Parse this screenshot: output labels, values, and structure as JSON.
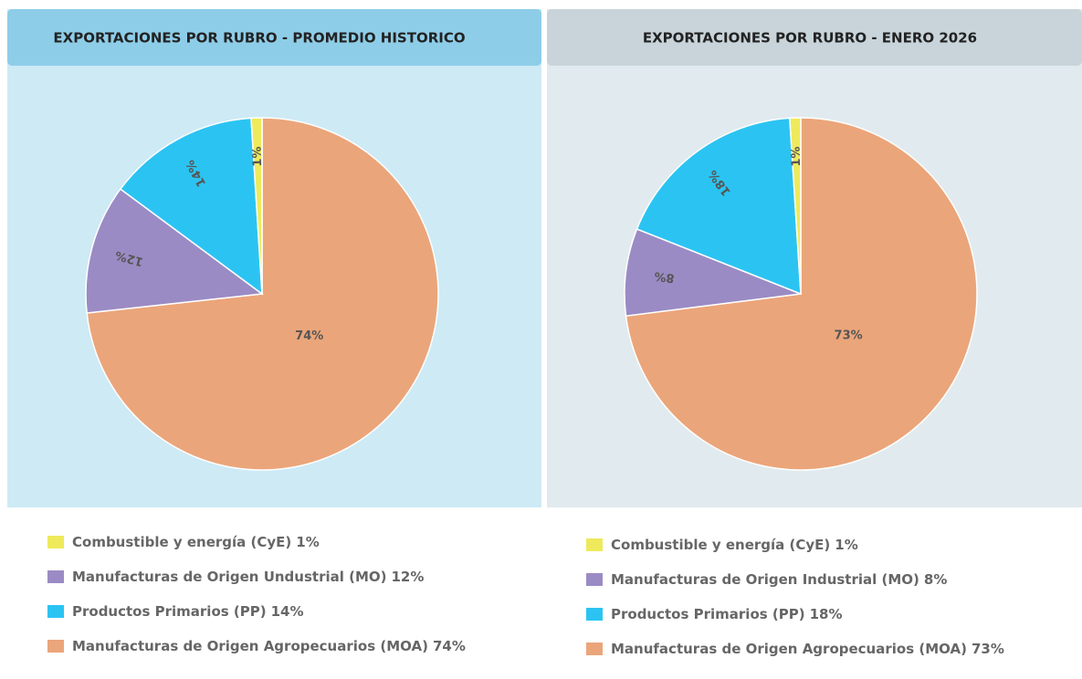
{
  "chart_data": [
    {
      "type": "pie",
      "title": "EXPORTACIONES POR RUBRO - PROMEDIO HISTORICO",
      "categories": [
        "Manufacturas de Origen Agropecuarios (MOA)",
        "Manufacturas de Origen Undustrial (MO)",
        "Productos Primarios (PP)",
        "Combustible y energía (CyE)"
      ],
      "values": [
        74,
        12,
        14,
        1
      ],
      "value_labels": [
        "74%",
        "12%",
        "14%",
        "1%"
      ],
      "colors": [
        "#eba57a",
        "#9b8bc4",
        "#2bc4f2",
        "#eeea5c"
      ],
      "legend_order": [
        3,
        1,
        2,
        0
      ]
    },
    {
      "type": "pie",
      "title": "EXPORTACIONES POR RUBRO - ENERO 2026",
      "categories": [
        "Manufacturas de Origen Agropecuarios (MOA)",
        "Manufacturas de Origen Industrial (MO)",
        "Productos Primarios (PP)",
        "Combustible y energía (CyE)"
      ],
      "values": [
        73,
        8,
        18,
        1
      ],
      "value_labels": [
        "73%",
        "8%",
        "18%",
        "1%"
      ],
      "colors": [
        "#eba57a",
        "#9b8bc4",
        "#2bc4f2",
        "#eeea5c"
      ],
      "legend_order": [
        3,
        1,
        2,
        0
      ]
    }
  ]
}
